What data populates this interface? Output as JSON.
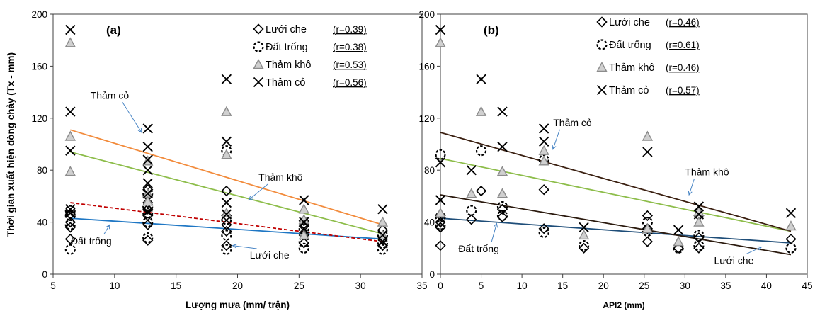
{
  "figure": {
    "shared_ylabel": "Thời gian xuất hiện dòng chảy (Tx - mm)"
  },
  "chart_data": [
    {
      "type": "scatter",
      "panel_label": "(a)",
      "xlabel": "Lượng mưa (mm/ trận)",
      "ylabel": "Thời gian xuất hiện dòng chảy (Tx - mm)",
      "xlim": [
        5,
        35
      ],
      "ylim": [
        0,
        200
      ],
      "xticks": [
        5,
        10,
        15,
        20,
        25,
        30,
        35
      ],
      "yticks": [
        0,
        40,
        80,
        120,
        160,
        200
      ],
      "grid": false,
      "legend_position": "top-right",
      "series": [
        {
          "name": "Lưới che",
          "r_label": "(r=0.39)",
          "marker": "diamond",
          "color": "#000000",
          "points": [
            [
              6.4,
              27
            ],
            [
              6.4,
              36
            ],
            [
              6.4,
              40
            ],
            [
              6.4,
              46
            ],
            [
              12.7,
              26
            ],
            [
              12.7,
              38
            ],
            [
              12.7,
              45
            ],
            [
              12.7,
              50
            ],
            [
              12.7,
              55
            ],
            [
              12.7,
              60
            ],
            [
              12.7,
              65
            ],
            [
              19.1,
              22
            ],
            [
              19.1,
              33
            ],
            [
              19.1,
              38
            ],
            [
              19.1,
              45
            ],
            [
              19.1,
              64
            ],
            [
              25.4,
              24
            ],
            [
              25.4,
              30
            ],
            [
              25.4,
              37
            ],
            [
              25.4,
              41
            ],
            [
              31.8,
              22
            ],
            [
              31.8,
              27
            ],
            [
              31.8,
              34
            ]
          ],
          "trend": {
            "x": [
              6.4,
              31.8
            ],
            "y": [
              43,
              27
            ],
            "color": "#1f77c4",
            "dash": false
          }
        },
        {
          "name": "Đất trống",
          "r_label": "(r=0.38)",
          "marker": "dashed-circle",
          "color": "#000000",
          "points": [
            [
              6.4,
              19
            ],
            [
              6.4,
              38
            ],
            [
              6.4,
              45
            ],
            [
              6.4,
              49
            ],
            [
              12.7,
              28
            ],
            [
              12.7,
              40
            ],
            [
              12.7,
              47
            ],
            [
              12.7,
              52
            ],
            [
              12.7,
              62
            ],
            [
              19.1,
              19
            ],
            [
              19.1,
              30
            ],
            [
              19.1,
              42
            ],
            [
              19.1,
              95
            ],
            [
              25.4,
              20
            ],
            [
              25.4,
              25
            ],
            [
              25.4,
              35
            ],
            [
              31.8,
              19
            ],
            [
              31.8,
              24
            ],
            [
              31.8,
              30
            ]
          ],
          "trend": {
            "x": [
              6.4,
              31.8
            ],
            "y": [
              55,
              25
            ],
            "color": "#c00000",
            "dash": true
          }
        },
        {
          "name": "Thảm khô",
          "r_label": "(r=0.53)",
          "marker": "triangle",
          "color": "#8c8c8c",
          "points": [
            [
              6.4,
              178
            ],
            [
              6.4,
              106
            ],
            [
              6.4,
              79
            ],
            [
              12.7,
              87
            ],
            [
              12.7,
              62
            ],
            [
              12.7,
              56
            ],
            [
              19.1,
              125
            ],
            [
              19.1,
              92
            ],
            [
              19.1,
              47
            ],
            [
              25.4,
              50
            ],
            [
              25.4,
              42
            ],
            [
              25.4,
              30
            ],
            [
              31.8,
              40
            ],
            [
              31.8,
              30
            ]
          ],
          "trend": {
            "x": [
              6.4,
              31.8
            ],
            "y": [
              94,
              31
            ],
            "color": "#8dbd4a",
            "dash": false
          }
        },
        {
          "name": "Thảm cỏ",
          "r_label": "(r=0.56)",
          "marker": "x",
          "color": "#000000",
          "points": [
            [
              6.4,
              188
            ],
            [
              6.4,
              125
            ],
            [
              6.4,
              95
            ],
            [
              6.4,
              50
            ],
            [
              6.4,
              47
            ],
            [
              12.7,
              112
            ],
            [
              12.7,
              98
            ],
            [
              12.7,
              88
            ],
            [
              12.7,
              80
            ],
            [
              12.7,
              70
            ],
            [
              12.7,
              62
            ],
            [
              12.7,
              48
            ],
            [
              19.1,
              150
            ],
            [
              19.1,
              102
            ],
            [
              19.1,
              55
            ],
            [
              19.1,
              46
            ],
            [
              25.4,
              57
            ],
            [
              25.4,
              40
            ],
            [
              25.4,
              35
            ],
            [
              31.8,
              50
            ],
            [
              31.8,
              30
            ],
            [
              31.8,
              25
            ]
          ],
          "trend": {
            "x": [
              6.4,
              31.8
            ],
            "y": [
              111,
              38
            ],
            "color": "#f28b3c",
            "dash": false
          }
        }
      ],
      "annotations": [
        {
          "text": "Thảm cỏ",
          "x": 9.6,
          "y": 135,
          "arrow_to": [
            12.2,
            109
          ]
        },
        {
          "text": "Thảm khô",
          "x": 23.5,
          "y": 72,
          "arrow_to": [
            20.9,
            57
          ]
        },
        {
          "text": "Đất trống",
          "x": 8.1,
          "y": 23,
          "arrow_to": [
            9.6,
            38
          ]
        },
        {
          "text": "Lưới che",
          "x": 22.6,
          "y": 12,
          "arrow_to": [
            19.6,
            22
          ]
        }
      ]
    },
    {
      "type": "scatter",
      "panel_label": "(b)",
      "xlabel": "API2 (mm)",
      "ylabel": "",
      "xlim": [
        0,
        45
      ],
      "ylim": [
        0,
        200
      ],
      "xticks": [
        0,
        5,
        10,
        15,
        20,
        25,
        30,
        35,
        40,
        45
      ],
      "yticks": [
        0,
        40,
        80,
        120,
        160,
        200
      ],
      "grid": false,
      "legend_position": "top-right",
      "series": [
        {
          "name": "Lưới che",
          "r_label": "(r=0.46)",
          "marker": "diamond",
          "color": "#000000",
          "points": [
            [
              0,
              22
            ],
            [
              0,
              36
            ],
            [
              0,
              40
            ],
            [
              0,
              45
            ],
            [
              3.8,
              42
            ],
            [
              5,
              64
            ],
            [
              7.6,
              44
            ],
            [
              7.6,
              50
            ],
            [
              12.7,
              35
            ],
            [
              12.7,
              65
            ],
            [
              17.6,
              20
            ],
            [
              25.4,
              25
            ],
            [
              25.4,
              35
            ],
            [
              25.4,
              45
            ],
            [
              29.2,
              20
            ],
            [
              31.7,
              20
            ],
            [
              31.7,
              28
            ],
            [
              31.7,
              45
            ],
            [
              43,
              27
            ]
          ],
          "trend": {
            "x": [
              0,
              43
            ],
            "y": [
              43,
              24
            ],
            "color": "#1f4e79",
            "dash": false
          }
        },
        {
          "name": "Đất trống",
          "r_label": "(r=0.61)",
          "marker": "dashed-circle",
          "color": "#000000",
          "points": [
            [
              0,
              92
            ],
            [
              0,
              38
            ],
            [
              0,
              44
            ],
            [
              3.8,
              49
            ],
            [
              5,
              95
            ],
            [
              7.6,
              45
            ],
            [
              7.6,
              52
            ],
            [
              12.7,
              32
            ],
            [
              12.7,
              88
            ],
            [
              17.6,
              22
            ],
            [
              25.4,
              33
            ],
            [
              25.4,
              40
            ],
            [
              29.2,
              20
            ],
            [
              31.7,
              22
            ],
            [
              31.7,
              30
            ],
            [
              43,
              20
            ]
          ],
          "trend": {
            "x": [
              0,
              43
            ],
            "y": [
              61,
              15
            ],
            "color": "#2b1a0e",
            "dash": false
          }
        },
        {
          "name": "Thảm khô",
          "r_label": "(r=0.46)",
          "marker": "triangle",
          "color": "#8c8c8c",
          "points": [
            [
              0,
              178
            ],
            [
              0,
              47
            ],
            [
              3.8,
              62
            ],
            [
              5,
              125
            ],
            [
              7.6,
              79
            ],
            [
              7.6,
              62
            ],
            [
              12.7,
              87
            ],
            [
              12.7,
              95
            ],
            [
              17.6,
              30
            ],
            [
              25.4,
              106
            ],
            [
              25.4,
              35
            ],
            [
              29.2,
              25
            ],
            [
              31.7,
              40
            ],
            [
              31.7,
              48
            ],
            [
              43,
              37
            ]
          ],
          "trend": {
            "x": [
              0,
              43
            ],
            "y": [
              89,
              33
            ],
            "color": "#8dbd4a",
            "dash": false
          }
        },
        {
          "name": "Thảm cỏ",
          "r_label": "(r=0.57)",
          "marker": "x",
          "color": "#000000",
          "points": [
            [
              0,
              188
            ],
            [
              0,
              86
            ],
            [
              0,
              57
            ],
            [
              3.8,
              80
            ],
            [
              5,
              150
            ],
            [
              7.6,
              125
            ],
            [
              7.6,
              98
            ],
            [
              12.7,
              112
            ],
            [
              12.7,
              102
            ],
            [
              17.6,
              36
            ],
            [
              25.4,
              94
            ],
            [
              29.2,
              34
            ],
            [
              31.7,
              52
            ],
            [
              31.7,
              46
            ],
            [
              43,
              47
            ]
          ],
          "trend": {
            "x": [
              0,
              43
            ],
            "y": [
              109,
              33
            ],
            "color": "#3a1f10",
            "dash": false
          }
        }
      ],
      "annotations": [
        {
          "text": "Thảm cỏ",
          "x": 16.2,
          "y": 114,
          "arrow_to": [
            13.8,
            96
          ]
        },
        {
          "text": "Thảm khô",
          "x": 32.7,
          "y": 76,
          "arrow_to": [
            30.5,
            61
          ]
        },
        {
          "text": "Đất trống",
          "x": 4.7,
          "y": 17,
          "arrow_to": [
            6.9,
            39
          ]
        },
        {
          "text": "Lưới che",
          "x": 36,
          "y": 8,
          "arrow_to": [
            39.4,
            21
          ]
        }
      ]
    }
  ]
}
